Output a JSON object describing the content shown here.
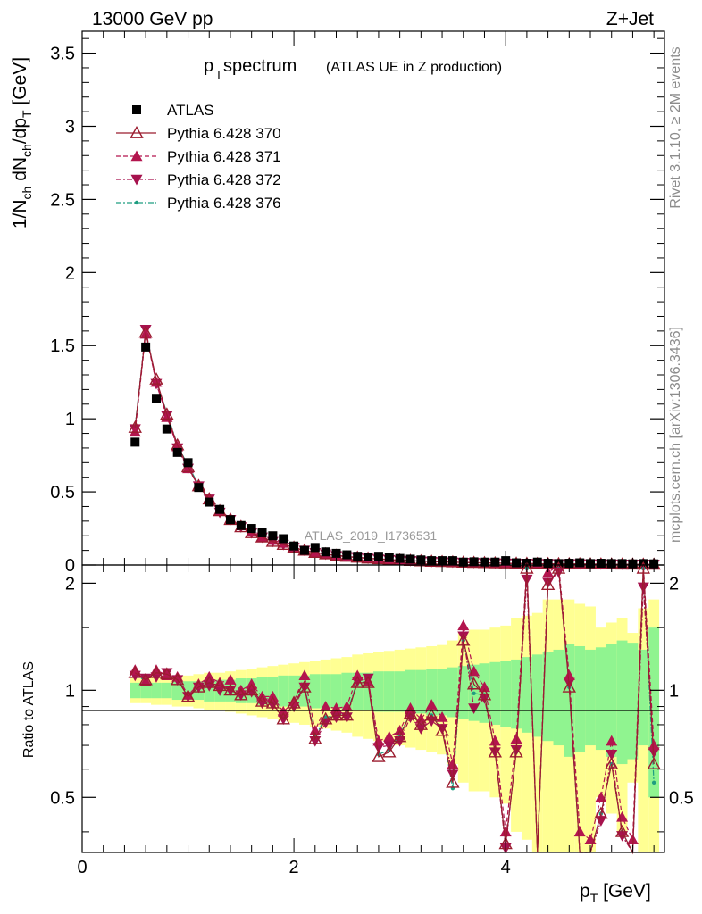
{
  "header": {
    "left": "13000 GeV pp",
    "right": "Z+Jet"
  },
  "title": {
    "main": "p",
    "main_sub": "T",
    "main_rest": " spectrum",
    "extra": "(ATLAS UE in Z production)"
  },
  "side_labels": {
    "rivet": "Rivet 3.1.10, ≥ 2M events",
    "mcplots": "mcplots.cern.ch [arXiv:1306.3436]"
  },
  "watermark": "ATLAS_2019_I1736531",
  "upper_y_label": "1/N_ch dN_ch/dp_T [GeV]",
  "ratio_y_label": "Ratio to ATLAS",
  "x_label": "p_T [GeV]",
  "legend": [
    {
      "label": "ATLAS",
      "marker": "square",
      "color": "#000000"
    },
    {
      "label": "Pythia 6.428 370",
      "marker": "triangle-open",
      "color": "#9b1c2f",
      "dash": ""
    },
    {
      "label": "Pythia 6.428 371",
      "marker": "triangle-up",
      "color": "#b3154e",
      "dash": "5,3"
    },
    {
      "label": "Pythia 6.428 372",
      "marker": "triangle-down",
      "color": "#a6124d",
      "dash": "6,2,2,2"
    },
    {
      "label": "Pythia 6.428 376",
      "marker": "dot",
      "color": "#1f9d80",
      "dash": "6,2,2,2"
    }
  ],
  "chart_data": [
    {
      "type": "scatter",
      "panel": "main",
      "xlim": [
        0,
        5.5
      ],
      "ylim": [
        0,
        3.65
      ],
      "y_ticks": [
        0,
        0.5,
        1,
        1.5,
        2,
        2.5,
        3,
        3.5
      ],
      "y_tick_labels": [
        "0",
        "0.5",
        "1",
        "1.5",
        "2",
        "2.5",
        "3",
        "3.5"
      ],
      "x": [
        0.5,
        0.6,
        0.7,
        0.8,
        0.9,
        1.0,
        1.1,
        1.2,
        1.3,
        1.4,
        1.5,
        1.6,
        1.7,
        1.8,
        1.9,
        2.0,
        2.1,
        2.2,
        2.3,
        2.4,
        2.5,
        2.6,
        2.7,
        2.8,
        2.9,
        3.0,
        3.1,
        3.2,
        3.3,
        3.4,
        3.5,
        3.6,
        3.7,
        3.8,
        3.9,
        4.0,
        4.1,
        4.2,
        4.3,
        4.4,
        4.5,
        4.6,
        4.7,
        4.8,
        4.9,
        5.0,
        5.1,
        5.2,
        5.3,
        5.4
      ],
      "series": [
        {
          "name": "ATLAS",
          "values": [
            0.84,
            1.49,
            1.14,
            0.93,
            0.77,
            0.7,
            0.53,
            0.43,
            0.38,
            0.31,
            0.27,
            0.25,
            0.22,
            0.2,
            0.18,
            0.13,
            0.1,
            0.12,
            0.09,
            0.08,
            0.07,
            0.06,
            0.055,
            0.06,
            0.05,
            0.045,
            0.04,
            0.035,
            0.03,
            0.03,
            0.03,
            0.02,
            0.022,
            0.02,
            0.02,
            0.03,
            0.015,
            0.012,
            0.02,
            0.012,
            0.01,
            0.012,
            0.015,
            0.01,
            0.012,
            0.01,
            0.01,
            0.008,
            0.01,
            0.008
          ]
        },
        {
          "name": "Pythia 6.428 370",
          "values": [
            0.94,
            1.59,
            1.27,
            1.03,
            0.82,
            0.67,
            0.54,
            0.45,
            0.37,
            0.31,
            0.26,
            0.22,
            0.19,
            0.16,
            0.14,
            0.12,
            0.1,
            0.085,
            0.075,
            0.065,
            0.058,
            0.052,
            0.046,
            0.041,
            0.037,
            0.033,
            0.03,
            0.027,
            0.024,
            0.022,
            0.02,
            0.018,
            0.016,
            0.015,
            0.013,
            0.012,
            0.011,
            0.01,
            0.009,
            0.0085,
            0.008,
            0.0075,
            0.007,
            0.0065,
            0.006,
            0.0055,
            0.005,
            0.0047,
            0.0044,
            0.0041
          ]
        },
        {
          "name": "Pythia 6.428 371",
          "values": [
            0.91,
            1.58,
            1.25,
            1.01,
            0.81,
            0.66,
            0.55,
            0.46,
            0.37,
            0.32,
            0.27,
            0.23,
            0.19,
            0.17,
            0.15,
            0.12,
            0.1,
            0.087,
            0.077,
            0.066,
            0.059,
            0.053,
            0.047,
            0.042,
            0.038,
            0.034,
            0.031,
            0.028,
            0.025,
            0.023,
            0.021,
            0.019,
            0.017,
            0.015,
            0.014,
            0.012,
            0.011,
            0.01,
            0.009,
            0.0085,
            0.008,
            0.0075,
            0.007,
            0.0065,
            0.006,
            0.0055,
            0.005,
            0.0047,
            0.0044,
            0.0041
          ]
        },
        {
          "name": "Pythia 6.428 372",
          "values": [
            0.93,
            1.61,
            1.24,
            1.02,
            0.8,
            0.66,
            0.54,
            0.45,
            0.36,
            0.31,
            0.26,
            0.22,
            0.19,
            0.16,
            0.14,
            0.12,
            0.1,
            0.084,
            0.074,
            0.064,
            0.057,
            0.051,
            0.045,
            0.04,
            0.036,
            0.032,
            0.029,
            0.026,
            0.023,
            0.021,
            0.019,
            0.017,
            0.016,
            0.014,
            0.013,
            0.012,
            0.011,
            0.01,
            0.009,
            0.0085,
            0.008,
            0.0075,
            0.007,
            0.0065,
            0.006,
            0.0055,
            0.005,
            0.0047,
            0.0044,
            0.0041
          ]
        },
        {
          "name": "Pythia 6.428 376",
          "values": [
            0.95,
            1.6,
            1.26,
            1.04,
            0.82,
            0.68,
            0.55,
            0.45,
            0.37,
            0.31,
            0.26,
            0.22,
            0.19,
            0.16,
            0.14,
            0.12,
            0.1,
            0.085,
            0.075,
            0.065,
            0.058,
            0.052,
            0.046,
            0.041,
            0.037,
            0.033,
            0.03,
            0.027,
            0.024,
            0.022,
            0.02,
            0.018,
            0.016,
            0.015,
            0.013,
            0.012,
            0.011,
            0.01,
            0.009,
            0.0085,
            0.008,
            0.0075,
            0.007,
            0.0065,
            0.006,
            0.0055,
            0.005,
            0.0047,
            0.0044,
            0.0041
          ]
        }
      ]
    },
    {
      "type": "line",
      "panel": "ratio",
      "xlim": [
        0,
        5.5
      ],
      "ylim": [
        0.35,
        2.25
      ],
      "y_ticks": [
        0.5,
        1,
        2
      ],
      "y_tick_labels": [
        "0.5",
        "1",
        "2"
      ],
      "x_ticks": [
        0,
        2,
        4
      ],
      "x_tick_labels": [
        "0",
        "2",
        "4"
      ],
      "x": [
        0.5,
        0.6,
        0.7,
        0.8,
        0.9,
        1.0,
        1.1,
        1.2,
        1.3,
        1.4,
        1.5,
        1.6,
        1.7,
        1.8,
        1.9,
        2.0,
        2.1,
        2.2,
        2.3,
        2.4,
        2.5,
        2.6,
        2.7,
        2.8,
        2.9,
        3.0,
        3.1,
        3.2,
        3.3,
        3.4,
        3.5,
        3.6,
        3.7,
        3.8,
        3.9,
        4.0,
        4.1,
        4.2,
        4.3,
        4.4,
        4.5,
        4.6,
        4.7,
        4.8,
        4.9,
        5.0,
        5.1,
        5.2,
        5.3,
        5.4
      ],
      "band_inner": [
        0.05,
        0.05,
        0.05,
        0.05,
        0.06,
        0.06,
        0.06,
        0.07,
        0.07,
        0.07,
        0.08,
        0.08,
        0.09,
        0.09,
        0.1,
        0.1,
        0.1,
        0.11,
        0.11,
        0.11,
        0.12,
        0.12,
        0.12,
        0.13,
        0.13,
        0.13,
        0.14,
        0.14,
        0.15,
        0.15,
        0.16,
        0.17,
        0.18,
        0.19,
        0.2,
        0.21,
        0.22,
        0.24,
        0.26,
        0.28,
        0.3,
        0.35,
        0.33,
        0.3,
        0.32,
        0.35,
        0.38,
        0.36,
        0.3,
        0.5
      ],
      "band_outer": [
        0.08,
        0.08,
        0.09,
        0.09,
        0.1,
        0.1,
        0.11,
        0.12,
        0.12,
        0.13,
        0.14,
        0.15,
        0.16,
        0.17,
        0.18,
        0.19,
        0.2,
        0.21,
        0.22,
        0.23,
        0.24,
        0.26,
        0.27,
        0.28,
        0.29,
        0.3,
        0.31,
        0.32,
        0.33,
        0.34,
        0.38,
        0.45,
        0.48,
        0.48,
        0.5,
        0.52,
        0.6,
        0.62,
        0.65,
        0.8,
        0.8,
        0.8,
        0.75,
        0.72,
        0.5,
        0.55,
        0.6,
        0.45,
        0.7,
        0.8
      ],
      "series": [
        {
          "name": "Pythia 6.428 370",
          "values": [
            1.12,
            1.07,
            1.12,
            1.11,
            1.07,
            0.96,
            1.02,
            1.05,
            1.03,
            1.0,
            0.97,
            1.0,
            0.93,
            0.92,
            0.83,
            0.92,
            1.02,
            0.73,
            0.83,
            0.85,
            0.85,
            1.05,
            1.05,
            0.65,
            0.67,
            0.74,
            0.86,
            0.8,
            0.85,
            0.77,
            0.55,
            1.38,
            1.04,
            0.97,
            0.67,
            0.37,
            0.67,
            2.2,
            0.3,
            1.98,
            2.2,
            1.02,
            0.35,
            0.35,
            0.45,
            0.62,
            0.4,
            0.35,
            2.2,
            0.62
          ]
        },
        {
          "name": "Pythia 6.428 371",
          "values": [
            1.14,
            1.06,
            1.14,
            1.1,
            1.09,
            0.97,
            1.04,
            1.09,
            1.05,
            1.07,
            1.0,
            1.04,
            0.96,
            0.96,
            0.87,
            0.93,
            1.1,
            0.77,
            0.9,
            0.89,
            0.9,
            1.1,
            1.06,
            0.72,
            0.74,
            0.77,
            0.89,
            0.83,
            0.91,
            0.84,
            0.62,
            1.52,
            1.13,
            1.02,
            0.72,
            0.4,
            0.73,
            2.3,
            0.32,
            2.14,
            2.4,
            1.1,
            0.4,
            0.38,
            0.5,
            0.72,
            0.44,
            0.38,
            2.4,
            0.7
          ]
        },
        {
          "name": "Pythia 6.428 372",
          "values": [
            1.1,
            1.08,
            1.09,
            1.12,
            1.07,
            0.96,
            1.02,
            1.03,
            1.0,
            1.0,
            0.97,
            0.99,
            0.92,
            0.91,
            0.83,
            0.9,
            1.02,
            0.72,
            0.81,
            0.84,
            0.84,
            1.06,
            1.08,
            0.69,
            0.7,
            0.72,
            0.84,
            0.78,
            0.82,
            0.78,
            0.58,
            1.42,
            0.89,
            0.95,
            0.67,
            0.36,
            0.68,
            2.05,
            0.29,
            2.01,
            2.15,
            1.05,
            0.33,
            0.34,
            0.43,
            0.66,
            0.39,
            0.34,
            1.95,
            0.67
          ]
        },
        {
          "name": "Pythia 6.428 376",
          "values": [
            1.11,
            1.06,
            1.12,
            1.11,
            1.08,
            0.96,
            1.02,
            1.05,
            1.03,
            1.0,
            0.97,
            1.0,
            0.93,
            0.92,
            0.83,
            0.92,
            1.03,
            0.74,
            0.84,
            0.85,
            0.86,
            1.06,
            1.05,
            0.66,
            0.68,
            0.75,
            0.86,
            0.8,
            0.85,
            0.78,
            0.53,
            1.38,
            0.98,
            0.97,
            0.67,
            0.37,
            0.67,
            2.2,
            0.3,
            1.98,
            2.2,
            1.02,
            0.35,
            0.35,
            0.45,
            0.62,
            0.4,
            0.35,
            2.2,
            0.55
          ]
        }
      ]
    }
  ]
}
